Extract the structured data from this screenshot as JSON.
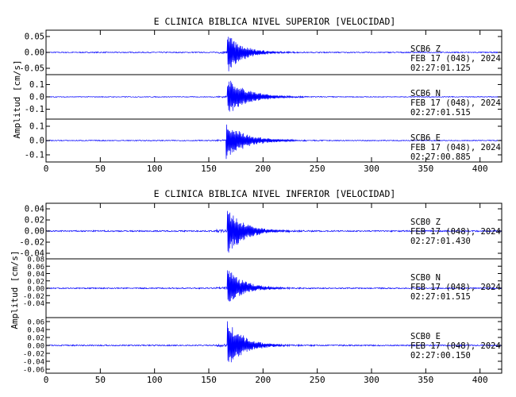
{
  "chart_data": [
    {
      "type": "line",
      "title": "E CLINICA BIBLICA NIVEL SUPERIOR [VELOCIDAD]",
      "ylabel": "Amplitud [cm/s]",
      "xlim": [
        0,
        420
      ],
      "xticks": [
        "0",
        "50",
        "100",
        "150",
        "200",
        "250",
        "300",
        "350",
        "400"
      ],
      "grid": false,
      "series": [
        {
          "name": "SCB6 Z",
          "station": "SCB6",
          "component": "Z",
          "date": "FEB 17 (048), 2024",
          "time": "02:27:01.125",
          "ylim": [
            -0.07,
            0.07
          ],
          "yticks": [
            "0.05",
            "0.00",
            "-0.05"
          ],
          "onset": 167,
          "peak_pos": 0.06,
          "peak_neg": -0.07,
          "noise": 0.0015,
          "decay": 14,
          "color": "#0000ff"
        },
        {
          "name": "SCB6 N",
          "station": "SCB6",
          "component": "N",
          "date": "FEB 17 (048), 2024",
          "time": "02:27:01.515",
          "ylim": [
            -0.18,
            0.18
          ],
          "yticks": [
            "0.1",
            "0.0",
            "-0.1"
          ],
          "onset": 167,
          "peak_pos": 0.16,
          "peak_neg": -0.15,
          "noise": 0.003,
          "decay": 18,
          "color": "#0000ff"
        },
        {
          "name": "SCB6 E",
          "station": "SCB6",
          "component": "E",
          "date": "FEB 17 (048), 2024",
          "time": "02:27:00.885",
          "ylim": [
            -0.15,
            0.15
          ],
          "yticks": [
            "0.1",
            "0.0",
            "-0.1"
          ],
          "onset": 166,
          "peak_pos": 0.13,
          "peak_neg": -0.14,
          "noise": 0.003,
          "decay": 18,
          "color": "#0000ff"
        }
      ]
    },
    {
      "type": "line",
      "title": "E CLINICA BIBLICA NIVEL INFERIOR [VELOCIDAD]",
      "ylabel": "Amplitud [cm/s]",
      "xlim": [
        0,
        420
      ],
      "xticks": [
        "0",
        "50",
        "100",
        "150",
        "200",
        "250",
        "300",
        "350",
        "400"
      ],
      "grid": false,
      "series": [
        {
          "name": "SCB0 Z",
          "station": "SCB0",
          "component": "Z",
          "date": "FEB 17 (048), 2024",
          "time": "02:27:01.430",
          "ylim": [
            -0.05,
            0.05
          ],
          "yticks": [
            "0.04",
            "0.02",
            "0.00",
            "-0.02",
            "-0.04"
          ],
          "onset": 167,
          "peak_pos": 0.045,
          "peak_neg": -0.045,
          "noise": 0.0012,
          "decay": 15,
          "color": "#0000ff"
        },
        {
          "name": "SCB0 N",
          "station": "SCB0",
          "component": "N",
          "date": "FEB 17 (048), 2024",
          "time": "02:27:01.515",
          "ylim": [
            -0.08,
            0.08
          ],
          "yticks": [
            "0.08",
            "0.06",
            "0.04",
            "0.02",
            "0.00",
            "-0.02",
            "-0.04"
          ],
          "onset": 167,
          "peak_pos": 0.06,
          "peak_neg": -0.045,
          "noise": 0.0015,
          "decay": 15,
          "color": "#0000ff"
        },
        {
          "name": "SCB0 E",
          "station": "SCB0",
          "component": "E",
          "date": "FEB 17 (048), 2024",
          "time": "02:27:00.150",
          "ylim": [
            -0.07,
            0.07
          ],
          "yticks": [
            "0.06",
            "0.04",
            "0.02",
            "0.00",
            "-0.02",
            "-0.04",
            "-0.06"
          ],
          "onset": 167,
          "peak_pos": 0.065,
          "peak_neg": -0.06,
          "noise": 0.0015,
          "decay": 15,
          "color": "#0000ff"
        }
      ]
    }
  ]
}
